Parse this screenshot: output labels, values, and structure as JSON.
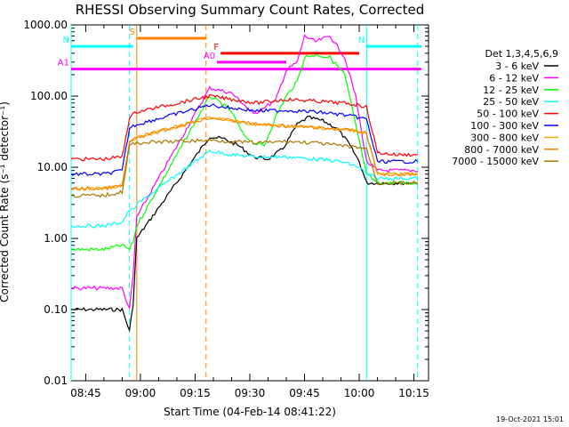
{
  "chart_data": {
    "type": "line",
    "title": "RHESSI Observing Summary Count Rates, Corrected",
    "xlabel": "Start Time (04-Feb-14 08:41:22)",
    "ylabel": "Corrected Count Rate (s⁻¹ detector⁻¹)",
    "yscale": "log",
    "ylim": [
      0.01,
      1000
    ],
    "xlim": [
      "08:41",
      "10:19"
    ],
    "x_ticks": [
      "08:45",
      "09:00",
      "09:15",
      "09:30",
      "09:45",
      "10:00",
      "10:15"
    ],
    "y_ticks": [
      "0.01",
      "0.10",
      "1.00",
      "10.00",
      "100.00",
      "1000.00"
    ],
    "grid": false,
    "legend_position": "right",
    "legend_title": "Det 1,3,4,5,6,9",
    "footer_date": "19-Oct-2021 15:01",
    "series": [
      {
        "name": "3 - 6 keV",
        "color": "#000000",
        "x": [
          "08:41",
          "08:50",
          "08:55",
          "08:57",
          "08:58",
          "08:59",
          "09:19",
          "09:23",
          "09:27",
          "09:31",
          "09:35",
          "09:39",
          "09:43",
          "09:46",
          "09:50",
          "09:54",
          "09:57",
          "10:00",
          "10:02",
          "10:05",
          "10:10",
          "10:16"
        ],
        "y": [
          0.1,
          0.1,
          0.1,
          0.05,
          0.12,
          1.0,
          27,
          25,
          20,
          14,
          13,
          18,
          40,
          50,
          45,
          35,
          22,
          12,
          6,
          6,
          6,
          6
        ]
      },
      {
        "name": "6 - 12 keV",
        "color": "#ff00ff",
        "x": [
          "08:41",
          "08:50",
          "08:55",
          "08:57",
          "08:58",
          "08:59",
          "09:19",
          "09:22",
          "09:25",
          "09:28",
          "09:31",
          "09:34",
          "09:37",
          "09:40",
          "09:43",
          "09:45",
          "09:48",
          "09:52",
          "09:56",
          "09:59",
          "10:02",
          "10:05",
          "10:10",
          "10:16"
        ],
        "y": [
          0.2,
          0.2,
          0.2,
          0.1,
          0.3,
          2.0,
          130,
          120,
          110,
          80,
          55,
          70,
          85,
          230,
          300,
          700,
          580,
          700,
          350,
          100,
          12,
          9,
          9,
          9
        ]
      },
      {
        "name": "12 - 25 keV",
        "color": "#00ff00",
        "x": [
          "08:41",
          "08:50",
          "08:55",
          "08:57",
          "08:58",
          "08:59",
          "09:19",
          "09:22",
          "09:25",
          "09:28",
          "09:31",
          "09:34",
          "09:37",
          "09:40",
          "09:43",
          "09:45",
          "09:48",
          "09:52",
          "09:56",
          "09:59",
          "10:02",
          "10:05",
          "10:10",
          "10:16"
        ],
        "y": [
          0.7,
          0.7,
          0.8,
          0.7,
          0.9,
          1.5,
          100,
          80,
          60,
          30,
          22,
          20,
          50,
          100,
          160,
          350,
          380,
          350,
          200,
          40,
          8,
          6,
          6,
          6
        ]
      },
      {
        "name": "25 - 50 keV",
        "color": "#00ffff",
        "x": [
          "08:41",
          "08:50",
          "08:55",
          "08:57",
          "08:58",
          "08:59",
          "09:19",
          "09:25",
          "09:32",
          "09:40",
          "09:48",
          "09:55",
          "10:00",
          "10:02",
          "10:05",
          "10:10",
          "10:16"
        ],
        "y": [
          1.5,
          1.5,
          1.7,
          2.5,
          2.5,
          3.0,
          17,
          15,
          14,
          14,
          13,
          12,
          10,
          8,
          7,
          7,
          7
        ]
      },
      {
        "name": "50 - 100 keV",
        "color": "#ff0000",
        "x": [
          "08:41",
          "08:50",
          "08:55",
          "08:57",
          "08:58",
          "08:59",
          "09:19",
          "09:25",
          "09:32",
          "09:40",
          "09:48",
          "09:55",
          "10:00",
          "10:02",
          "10:05",
          "10:10",
          "10:16"
        ],
        "y": [
          13,
          13,
          14,
          50,
          55,
          60,
          100,
          90,
          80,
          90,
          85,
          80,
          75,
          70,
          16,
          15,
          15
        ]
      },
      {
        "name": "100 - 300 keV",
        "color": "#0000ff",
        "x": [
          "08:41",
          "08:50",
          "08:55",
          "08:57",
          "08:58",
          "08:59",
          "09:19",
          "09:25",
          "09:32",
          "09:40",
          "09:48",
          "09:55",
          "10:00",
          "10:02",
          "10:05",
          "10:10",
          "10:16"
        ],
        "y": [
          8,
          8,
          9,
          35,
          38,
          40,
          75,
          68,
          62,
          63,
          60,
          55,
          50,
          47,
          12,
          12,
          12
        ]
      },
      {
        "name": "300 - 800 keV",
        "color": "#ffaa00",
        "x": [
          "08:41",
          "08:50",
          "08:55",
          "08:57",
          "08:58",
          "08:59",
          "09:19",
          "09:25",
          "09:32",
          "09:40",
          "09:48",
          "09:55",
          "10:00",
          "10:02",
          "10:05",
          "10:10",
          "10:16"
        ],
        "y": [
          5,
          5,
          5.5,
          22,
          24,
          26,
          50,
          45,
          40,
          38,
          36,
          34,
          32,
          30,
          8,
          8,
          8
        ]
      },
      {
        "name": "800 - 7000 keV",
        "color": "#ff8000",
        "x": [
          "08:41",
          "08:50",
          "08:55",
          "08:57",
          "08:58",
          "08:59",
          "09:19",
          "09:25",
          "09:32",
          "09:40",
          "09:48",
          "09:55",
          "10:00",
          "10:02",
          "10:05",
          "10:10",
          "10:16"
        ],
        "y": [
          5,
          5,
          5.5,
          22,
          24,
          26,
          50,
          45,
          40,
          38,
          36,
          34,
          32,
          30,
          8,
          8,
          8
        ]
      },
      {
        "name": "7000 - 15000 keV",
        "color": "#aa7700",
        "x": [
          "08:41",
          "08:50",
          "08:55",
          "08:57",
          "08:58",
          "08:59",
          "09:19",
          "09:25",
          "09:32",
          "09:40",
          "09:48",
          "09:55",
          "10:00",
          "10:02",
          "10:05",
          "10:10",
          "10:16"
        ],
        "y": [
          4,
          4,
          4.5,
          20,
          21,
          22,
          24,
          23,
          22,
          23,
          22,
          20,
          19,
          18,
          6,
          6,
          6
        ]
      }
    ],
    "flag_bars": [
      {
        "label": "S",
        "color": "#ff8000",
        "start": "08:59",
        "end": "09:18",
        "y": 650,
        "label_color": "#ff8000"
      },
      {
        "label": "N",
        "color": "#00ffff",
        "start": "08:41",
        "end": "08:58",
        "y": 500,
        "label_color": "#00ffff"
      },
      {
        "label": "N",
        "color": "#00ffff",
        "start": "10:02",
        "end": "10:17",
        "y": 500,
        "label_color": "#00ffff"
      },
      {
        "label": "F",
        "color": "#ff0000",
        "start": "09:22",
        "end": "10:00",
        "y": 400,
        "label_color": "#ff0000"
      },
      {
        "label": "A0",
        "color": "#ff00ff",
        "start": "09:21",
        "end": "09:40",
        "y": 300,
        "label_color": "#ff00ff"
      },
      {
        "label": "A1",
        "color": "#ff00ff",
        "start": "08:41",
        "end": "10:17",
        "y": 240,
        "label_color": "#ff00ff"
      }
    ],
    "vertical_lines": [
      {
        "x": "08:41",
        "color": "#00ffff",
        "style": "solid"
      },
      {
        "x": "08:57",
        "color": "#00ffff",
        "style": "dashed"
      },
      {
        "x": "08:59",
        "color": "#ff8000",
        "style": "solid"
      },
      {
        "x": "09:18",
        "color": "#ff8000",
        "style": "dashed"
      },
      {
        "x": "10:02",
        "color": "#00ffff",
        "style": "solid"
      },
      {
        "x": "10:16",
        "color": "#00ffff",
        "style": "dashed"
      }
    ]
  }
}
